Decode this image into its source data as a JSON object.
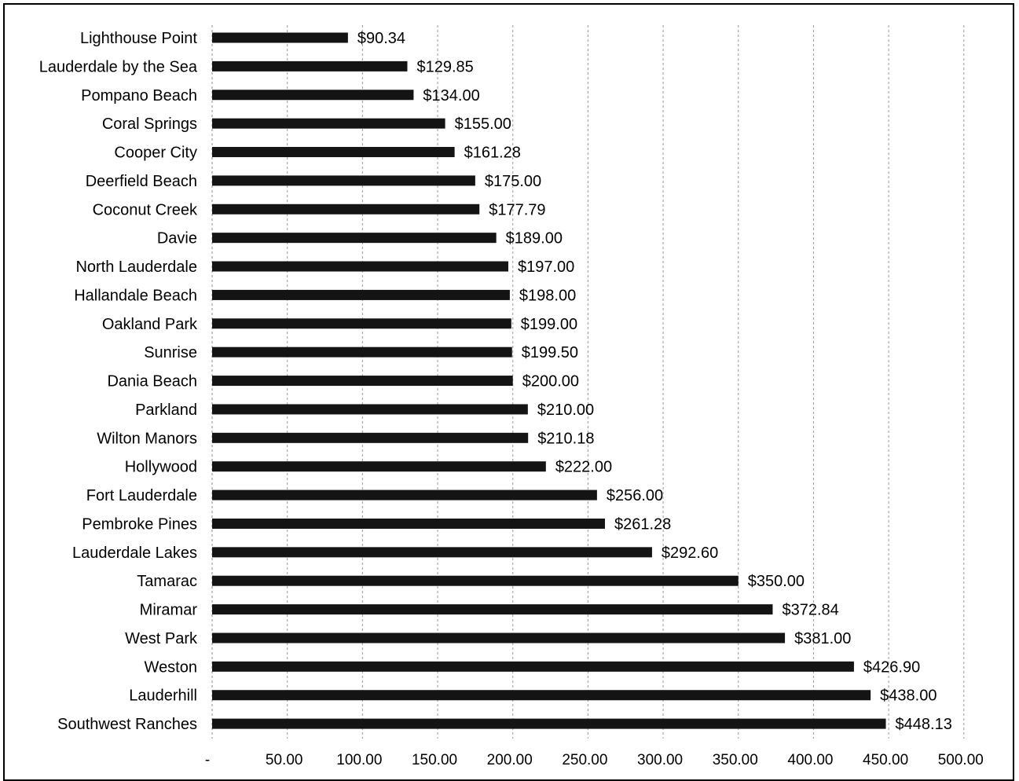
{
  "chart_data": {
    "type": "bar",
    "orientation": "horizontal",
    "title": "",
    "xlabel": "",
    "ylabel": "",
    "xlim": [
      0,
      500
    ],
    "grid": true,
    "legend": "none",
    "bar_color": "#141414",
    "x_ticks": [
      "-",
      "50.00",
      "100.00",
      "150.00",
      "200.00",
      "250.00",
      "300.00",
      "350.00",
      "400.00",
      "450.00",
      "500.00"
    ],
    "x_tick_values": [
      0,
      50,
      100,
      150,
      200,
      250,
      300,
      350,
      400,
      450,
      500
    ],
    "categories": [
      "Lighthouse Point",
      "Lauderdale by the Sea",
      "Pompano Beach",
      "Coral Springs",
      "Cooper City",
      "Deerfield Beach",
      "Coconut Creek",
      "Davie",
      "North Lauderdale",
      "Hallandale Beach",
      "Oakland Park",
      "Sunrise",
      "Dania Beach",
      "Parkland",
      "Wilton Manors",
      "Hollywood",
      "Fort Lauderdale",
      "Pembroke Pines",
      "Lauderdale Lakes",
      "Tamarac",
      "Miramar",
      "West Park",
      "Weston",
      "Lauderhill",
      "Southwest Ranches"
    ],
    "values": [
      90.34,
      129.85,
      134.0,
      155.0,
      161.28,
      175.0,
      177.79,
      189.0,
      197.0,
      198.0,
      199.0,
      199.5,
      200.0,
      210.0,
      210.18,
      222.0,
      256.0,
      261.28,
      292.6,
      350.0,
      372.84,
      381.0,
      426.9,
      438.0,
      448.13
    ],
    "value_labels": [
      "$90.34",
      "$129.85",
      "$134.00",
      "$155.00",
      "$161.28",
      "$175.00",
      "$177.79",
      "$189.00",
      "$197.00",
      "$198.00",
      "$199.00",
      "$199.50",
      "$200.00",
      "$210.00",
      "$210.18",
      "$222.00",
      "$256.00",
      "$261.28",
      "$292.60",
      "$350.00",
      "$372.84",
      "$381.00",
      "$426.90",
      "$438.00",
      "$448.13"
    ]
  }
}
